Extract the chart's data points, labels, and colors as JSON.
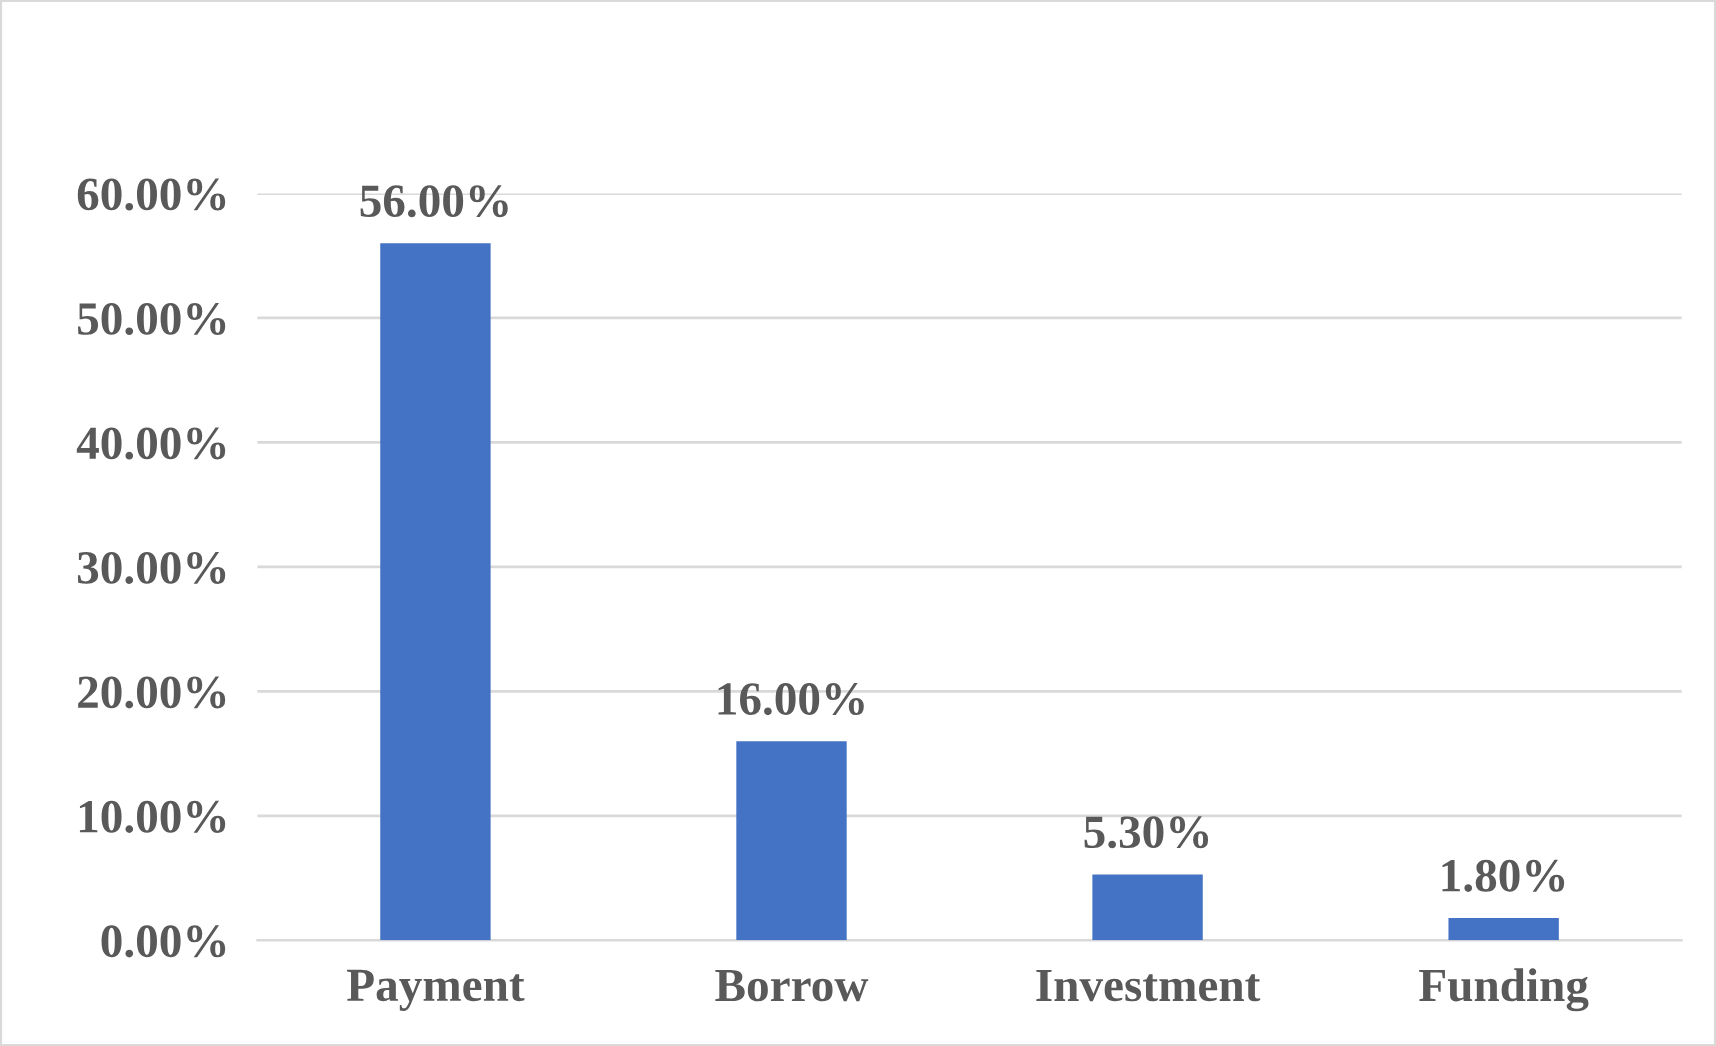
{
  "chart_data": {
    "type": "bar",
    "categories": [
      "Payment",
      "Borrow",
      "Investment",
      "Funding"
    ],
    "values": [
      56,
      16,
      5.3,
      1.8
    ],
    "color": "#4472c4",
    "value_labels": [
      "56.00%",
      "16.00%",
      "5.30%",
      "1.80%"
    ],
    "ylim": [
      0,
      60
    ],
    "yticks": [
      {
        "value": 0,
        "label": "0.00%"
      },
      {
        "value": 10,
        "label": "10.00%"
      },
      {
        "value": 20,
        "label": "20.00%"
      },
      {
        "value": 30,
        "label": "30.00%"
      },
      {
        "value": 40,
        "label": "40.00%"
      },
      {
        "value": 50,
        "label": "50.00%"
      },
      {
        "value": 60,
        "label": "60.00%"
      }
    ],
    "grid": "y",
    "legend": false
  }
}
